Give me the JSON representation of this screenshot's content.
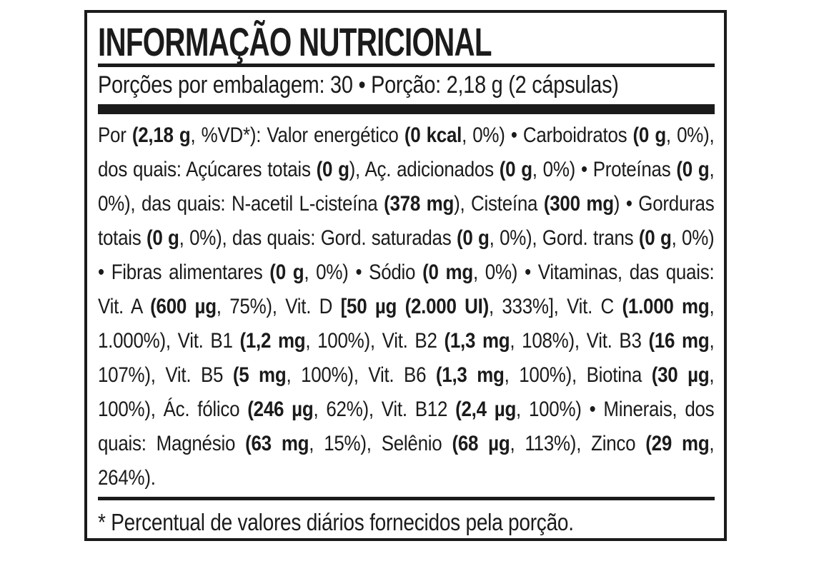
{
  "colors": {
    "ink": "#1b1b1b",
    "background": "#ffffff"
  },
  "panel": {
    "title": "INFORMAÇÃO NUTRICIONAL",
    "serving_line": "Porções por embalagem: 30 • Porção: 2,18 g (2 cápsulas)",
    "body_segments": [
      {
        "t": "Por ",
        "b": false
      },
      {
        "t": "(2,18 g",
        "b": true
      },
      {
        "t": ", %VD*): Valor energético ",
        "b": false
      },
      {
        "t": "(0 kcal",
        "b": true
      },
      {
        "t": ", 0%) • Carboidratos ",
        "b": false
      },
      {
        "t": "(0 g",
        "b": true
      },
      {
        "t": ", 0%), dos quais: Açúcares totais ",
        "b": false
      },
      {
        "t": "(0 g",
        "b": true
      },
      {
        "t": "), Aç. adicionados ",
        "b": false
      },
      {
        "t": "(0 g",
        "b": true
      },
      {
        "t": ", 0%) • Proteínas ",
        "b": false
      },
      {
        "t": "(0 g",
        "b": true
      },
      {
        "t": ", 0%), das quais: N-acetil L-cisteína ",
        "b": false
      },
      {
        "t": "(378 mg",
        "b": true
      },
      {
        "t": "), Cisteína ",
        "b": false
      },
      {
        "t": "(300 mg",
        "b": true
      },
      {
        "t": ") • Gorduras totais ",
        "b": false
      },
      {
        "t": "(0 g",
        "b": true
      },
      {
        "t": ", 0%), das quais: Gord. saturadas ",
        "b": false
      },
      {
        "t": "(0 g",
        "b": true
      },
      {
        "t": ", 0%), Gord. trans ",
        "b": false
      },
      {
        "t": "(0 g",
        "b": true
      },
      {
        "t": ", 0%) • Fibras alimentares ",
        "b": false
      },
      {
        "t": "(0 g",
        "b": true
      },
      {
        "t": ", 0%) • Sódio ",
        "b": false
      },
      {
        "t": "(0 mg",
        "b": true
      },
      {
        "t": ", 0%) • Vitaminas, das quais: Vit. A ",
        "b": false
      },
      {
        "t": "(600 µg",
        "b": true
      },
      {
        "t": ", 75%), Vit. D ",
        "b": false
      },
      {
        "t": "[50 µg (2.000 UI)",
        "b": true
      },
      {
        "t": ", 333%], Vit. C ",
        "b": false
      },
      {
        "t": "(1.000 mg",
        "b": true
      },
      {
        "t": ", 1.000%), Vit. B1 ",
        "b": false
      },
      {
        "t": "(1,2 mg",
        "b": true
      },
      {
        "t": ", 100%), Vit. B2 ",
        "b": false
      },
      {
        "t": "(1,3 mg",
        "b": true
      },
      {
        "t": ", 108%), Vit. B3 ",
        "b": false
      },
      {
        "t": "(16 mg",
        "b": true
      },
      {
        "t": ", 107%), Vit. B5 ",
        "b": false
      },
      {
        "t": "(5 mg",
        "b": true
      },
      {
        "t": ", 100%), Vit. B6 ",
        "b": false
      },
      {
        "t": "(1,3 mg",
        "b": true
      },
      {
        "t": ", 100%), Biotina ",
        "b": false
      },
      {
        "t": "(30 µg",
        "b": true
      },
      {
        "t": ", 100%), Ác. fólico ",
        "b": false
      },
      {
        "t": "(246 µg",
        "b": true
      },
      {
        "t": ", 62%), Vit. B12 ",
        "b": false
      },
      {
        "t": "(2,4 µg",
        "b": true
      },
      {
        "t": ", 100%) • Minerais, dos quais: Magnésio ",
        "b": false
      },
      {
        "t": "(63 mg",
        "b": true
      },
      {
        "t": ", 15%), Selênio ",
        "b": false
      },
      {
        "t": "(68 µg",
        "b": true
      },
      {
        "t": ", 113%), Zinco ",
        "b": false
      },
      {
        "t": "(29 mg",
        "b": true
      },
      {
        "t": ", 264%).",
        "b": false
      }
    ],
    "footnote": "* Percentual de valores diários fornecidos pela porção."
  }
}
